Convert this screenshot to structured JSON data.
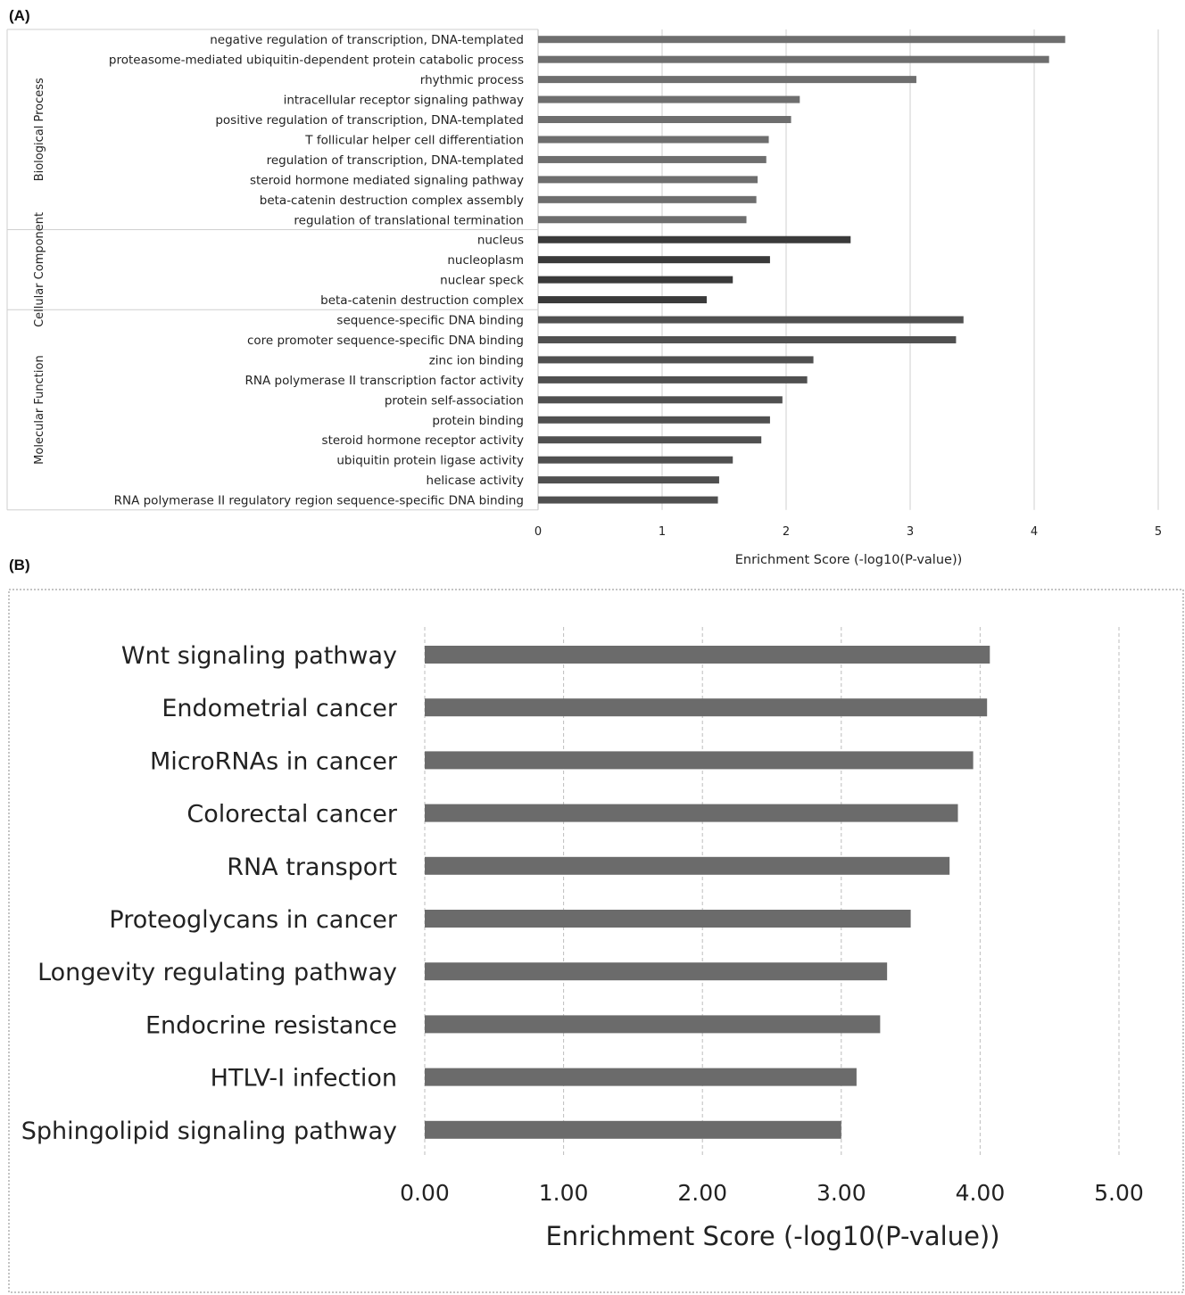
{
  "panels": {
    "a_label": "(A)",
    "b_label": "(B)"
  },
  "chart_data": [
    {
      "type": "bar",
      "orientation": "horizontal",
      "title": "",
      "xlabel": "Enrichment Score (-log10(P-value))",
      "ylabel": "",
      "xlim": [
        0,
        5
      ],
      "ticks": [
        "0",
        "1",
        "2",
        "3",
        "4",
        "5"
      ],
      "grid": true,
      "groups": [
        {
          "name": "Biological Process",
          "color": "#6e6e6e",
          "categories": [
            "negative regulation of transcription, DNA-templated",
            "proteasome-mediated ubiquitin-dependent protein catabolic process",
            "rhythmic process",
            "intracellular receptor signaling pathway",
            "positive regulation of transcription, DNA-templated",
            "T follicular helper cell differentiation",
            "regulation of transcription, DNA-templated",
            "steroid hormone mediated signaling pathway",
            "beta-catenin destruction complex assembly",
            "regulation of translational termination"
          ],
          "values": [
            4.25,
            4.12,
            3.05,
            2.11,
            2.04,
            1.86,
            1.84,
            1.77,
            1.76,
            1.68
          ]
        },
        {
          "name": "Cellular Component",
          "color": "#3a3a3a",
          "categories": [
            "nucleus",
            "nucleoplasm",
            "nuclear speck",
            "beta-catenin destruction complex"
          ],
          "values": [
            2.52,
            1.87,
            1.57,
            1.36
          ]
        },
        {
          "name": "Molecular Function",
          "color": "#505050",
          "categories": [
            "sequence-specific DNA binding",
            "core promoter sequence-specific DNA binding",
            "zinc ion binding",
            "RNA polymerase II transcription factor activity",
            "protein self-association",
            "protein binding",
            "steroid hormone receptor activity",
            "ubiquitin protein ligase activity",
            "helicase activity",
            "RNA polymerase II regulatory region sequence-specific DNA binding"
          ],
          "values": [
            3.43,
            3.37,
            2.22,
            2.17,
            1.97,
            1.87,
            1.8,
            1.57,
            1.46,
            1.45
          ]
        }
      ]
    },
    {
      "type": "bar",
      "orientation": "horizontal",
      "title": "",
      "xlabel": "Enrichment Score (-log10(P-value))",
      "ylabel": "",
      "xlim": [
        0,
        5
      ],
      "ticks": [
        "0.00",
        "1.00",
        "2.00",
        "3.00",
        "4.00",
        "5.00"
      ],
      "grid": true,
      "color": "#6b6b6b",
      "categories": [
        "Wnt signaling pathway",
        "Endometrial cancer",
        "MicroRNAs in cancer",
        "Colorectal cancer",
        "RNA transport",
        "Proteoglycans in cancer",
        "Longevity regulating pathway",
        "Endocrine resistance",
        "HTLV-I infection",
        "Sphingolipid signaling pathway"
      ],
      "values": [
        4.07,
        4.05,
        3.95,
        3.84,
        3.78,
        3.5,
        3.33,
        3.28,
        3.11,
        3.0
      ]
    }
  ]
}
